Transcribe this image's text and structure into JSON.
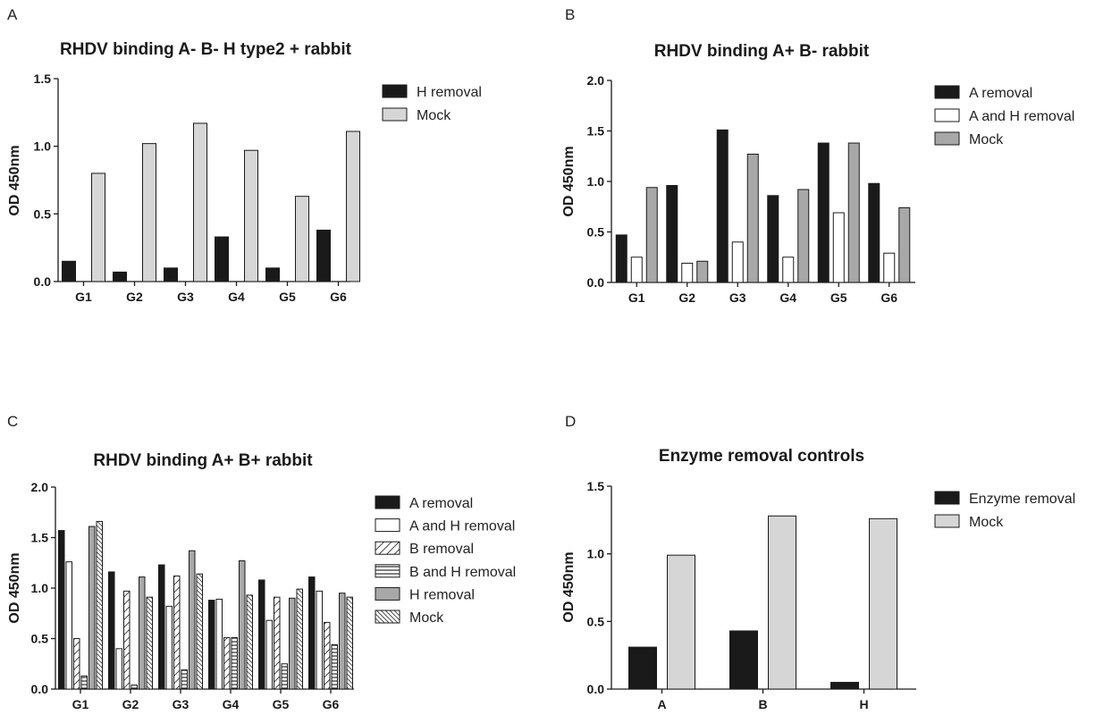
{
  "colors": {
    "black": "#1a1a1a",
    "white": "#ffffff",
    "light_gray": "#d6d6d6",
    "mid_gray": "#a8a8a8"
  },
  "chart_data": [
    {
      "panel": "A",
      "type": "bar",
      "title": "RHDV binding A-  B-  H type2 + rabbit",
      "xlabel": "",
      "ylabel": "OD 450nm",
      "ylim": [
        0,
        1.5
      ],
      "yticks": [
        "0.0",
        "0.5",
        "1.0",
        "1.5"
      ],
      "categories": [
        "G1",
        "G2",
        "G3",
        "G4",
        "G5",
        "G6"
      ],
      "legend_position": "top-right",
      "series": [
        {
          "name": "H removal",
          "fill": "black",
          "values": [
            0.15,
            0.07,
            0.1,
            0.33,
            0.1,
            0.38
          ]
        },
        {
          "name": "Mock",
          "fill": "light_gray",
          "values": [
            0.8,
            1.02,
            1.17,
            0.97,
            0.63,
            1.11
          ]
        }
      ]
    },
    {
      "panel": "B",
      "type": "bar",
      "title": "RHDV binding A+  B- rabbit",
      "xlabel": "",
      "ylabel": "OD 450nm",
      "ylim": [
        0,
        2.0
      ],
      "yticks": [
        "0.0",
        "0.5",
        "1.0",
        "1.5",
        "2.0"
      ],
      "categories": [
        "G1",
        "G2",
        "G3",
        "G4",
        "G5",
        "G6"
      ],
      "legend_position": "top-right",
      "series": [
        {
          "name": "A removal",
          "fill": "black",
          "values": [
            0.47,
            0.96,
            1.51,
            0.86,
            1.38,
            0.98
          ]
        },
        {
          "name": "A and H removal",
          "fill": "white",
          "values": [
            0.25,
            0.19,
            0.4,
            0.25,
            0.69,
            0.29
          ]
        },
        {
          "name": "Mock",
          "fill": "mid_gray",
          "values": [
            0.94,
            0.21,
            1.27,
            0.92,
            1.38,
            0.74
          ]
        }
      ]
    },
    {
      "panel": "C",
      "type": "bar",
      "title": "RHDV binding  A+  B+ rabbit",
      "xlabel": "",
      "ylabel": "OD 450nm",
      "ylim": [
        0,
        2.0
      ],
      "yticks": [
        "0.0",
        "0.5",
        "1.0",
        "1.5",
        "2.0"
      ],
      "categories": [
        "G1",
        "G2",
        "G3",
        "G4",
        "G5",
        "G6"
      ],
      "legend_position": "right",
      "series": [
        {
          "name": "A removal",
          "fill": "black",
          "values": [
            1.57,
            1.16,
            1.23,
            0.88,
            1.08,
            1.11
          ]
        },
        {
          "name": "A and H removal",
          "fill": "white",
          "values": [
            1.26,
            0.4,
            0.82,
            0.89,
            0.68,
            0.97
          ]
        },
        {
          "name": "B removal",
          "fill": "diag",
          "values": [
            0.5,
            0.97,
            1.12,
            0.51,
            0.91,
            0.66
          ]
        },
        {
          "name": "B and H removal",
          "fill": "horiz",
          "values": [
            0.13,
            0.04,
            0.19,
            0.51,
            0.25,
            0.44
          ]
        },
        {
          "name": "H removal",
          "fill": "mid_gray",
          "values": [
            1.61,
            1.11,
            1.37,
            1.27,
            0.9,
            0.95
          ]
        },
        {
          "name": "Mock",
          "fill": "dense_diag",
          "values": [
            1.66,
            0.91,
            1.14,
            0.93,
            0.99,
            0.91
          ]
        }
      ]
    },
    {
      "panel": "D",
      "type": "bar",
      "title": "Enzyme removal controls",
      "xlabel": "",
      "ylabel": "OD 450nm",
      "ylim": [
        0,
        1.5
      ],
      "yticks": [
        "0.0",
        "0.5",
        "1.0",
        "1.5"
      ],
      "categories": [
        "A",
        "B",
        "H"
      ],
      "legend_position": "top-right",
      "series": [
        {
          "name": "Enzyme removal",
          "fill": "black",
          "values": [
            0.31,
            0.43,
            0.05
          ]
        },
        {
          "name": "Mock",
          "fill": "light_gray",
          "values": [
            0.99,
            1.28,
            1.26
          ]
        }
      ]
    }
  ]
}
